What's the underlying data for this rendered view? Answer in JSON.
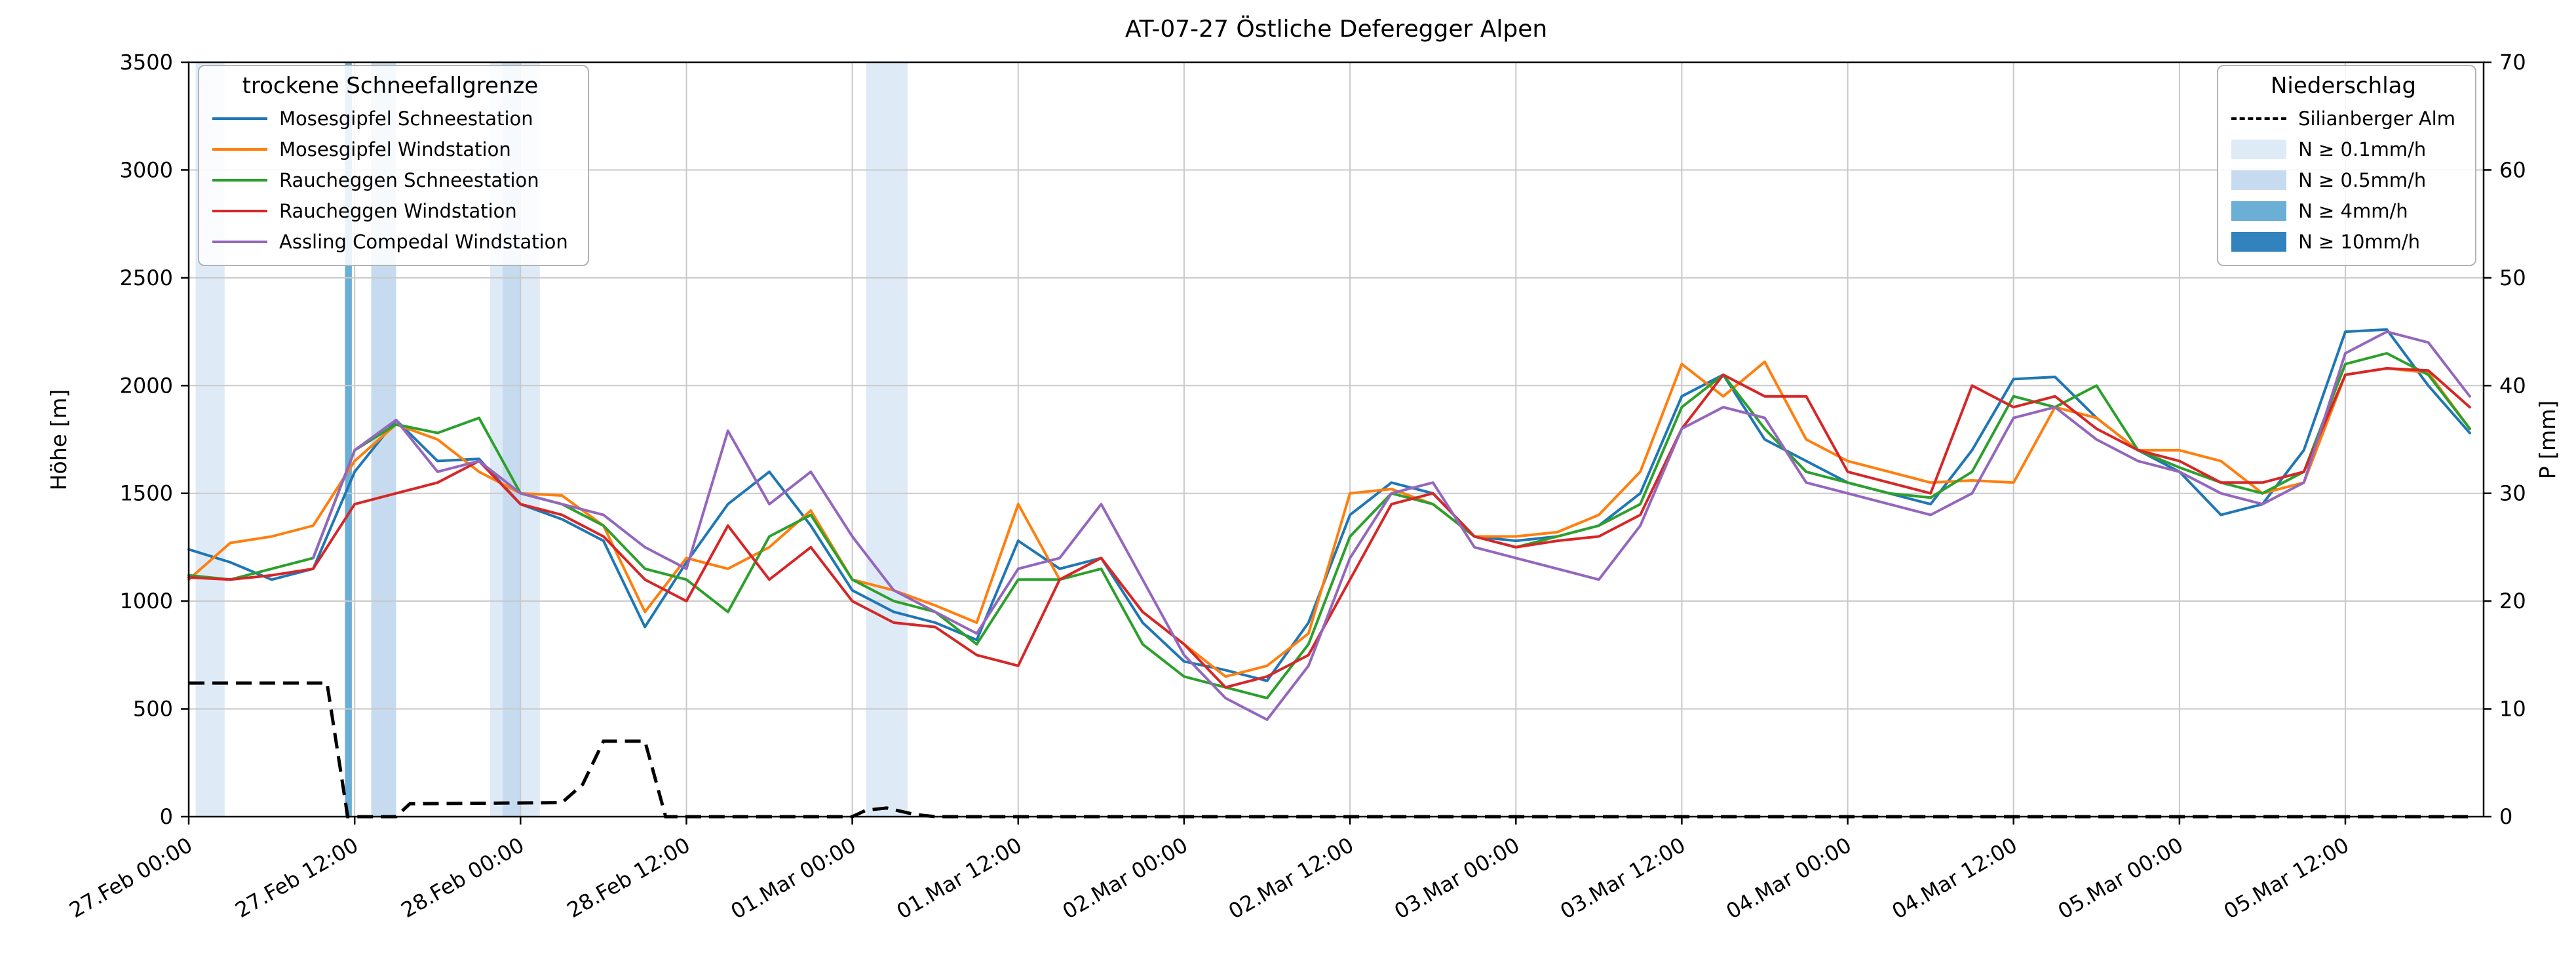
{
  "chart_data": {
    "type": "line",
    "title": "AT-07-27 Östliche Deferegger Alpen",
    "ylabel_left": "Höhe [m]",
    "ylabel_right": "P [mm]",
    "ylim_left": [
      0,
      3500
    ],
    "ylim_right": [
      0,
      70
    ],
    "y_ticks_left": [
      0,
      500,
      1000,
      1500,
      2000,
      2500,
      3000,
      3500
    ],
    "y_ticks_right": [
      0,
      10,
      20,
      30,
      40,
      50,
      60,
      70
    ],
    "x_unit": "hours since 27.Feb 00:00",
    "xlim": [
      0,
      166
    ],
    "grid": true,
    "x_ticks": [
      {
        "t": 0,
        "label": "27.Feb 00:00"
      },
      {
        "t": 12,
        "label": "27.Feb 12:00"
      },
      {
        "t": 24,
        "label": "28.Feb 00:00"
      },
      {
        "t": 36,
        "label": "28.Feb 12:00"
      },
      {
        "t": 48,
        "label": "01.Mar 00:00"
      },
      {
        "t": 60,
        "label": "01.Mar 12:00"
      },
      {
        "t": 72,
        "label": "02.Mar 00:00"
      },
      {
        "t": 84,
        "label": "02.Mar 12:00"
      },
      {
        "t": 96,
        "label": "03.Mar 00:00"
      },
      {
        "t": 108,
        "label": "03.Mar 12:00"
      },
      {
        "t": 120,
        "label": "04.Mar 00:00"
      },
      {
        "t": 132,
        "label": "04.Mar 12:00"
      },
      {
        "t": 144,
        "label": "05.Mar 00:00"
      },
      {
        "t": 156,
        "label": "05.Mar 12:00"
      }
    ],
    "x": [
      0,
      3,
      6,
      9,
      12,
      15,
      18,
      21,
      24,
      27,
      30,
      33,
      36,
      39,
      42,
      45,
      48,
      51,
      54,
      57,
      60,
      63,
      66,
      69,
      72,
      75,
      78,
      81,
      84,
      87,
      90,
      93,
      96,
      99,
      102,
      105,
      108,
      111,
      114,
      117,
      120,
      123,
      126,
      129,
      132,
      135,
      138,
      141,
      144,
      147,
      150,
      153,
      156,
      159,
      162,
      165
    ],
    "series": [
      {
        "name": "Mosesgipfel Schneestation",
        "color": "#1f77b4",
        "values": [
          1240,
          1180,
          1100,
          1150,
          1600,
          1840,
          1650,
          1660,
          1450,
          1380,
          1280,
          880,
          1180,
          1450,
          1600,
          1350,
          1050,
          950,
          900,
          820,
          1280,
          1150,
          1200,
          900,
          720,
          680,
          630,
          900,
          1400,
          1550,
          1500,
          1300,
          1280,
          1300,
          1350,
          1500,
          1950,
          2050,
          1750,
          1650,
          1550,
          1500,
          1450,
          1700,
          2030,
          2040,
          1850,
          1700,
          1600,
          1400,
          1450,
          1700,
          2250,
          2260,
          2000,
          1780
        ]
      },
      {
        "name": "Mosesgipfel Windstation",
        "color": "#ff7f0e",
        "values": [
          1100,
          1270,
          1300,
          1350,
          1650,
          1820,
          1750,
          1600,
          1500,
          1490,
          1350,
          950,
          1200,
          1150,
          1250,
          1420,
          1100,
          1050,
          980,
          900,
          1450,
          1100,
          1200,
          950,
          800,
          650,
          700,
          850,
          1500,
          1520,
          1450,
          1300,
          1300,
          1320,
          1400,
          1600,
          2100,
          1950,
          2110,
          1750,
          1650,
          1600,
          1550,
          1560,
          1550,
          1900,
          1850,
          1700,
          1700,
          1650,
          1500,
          1550,
          2050,
          2080,
          2060,
          1800
        ]
      },
      {
        "name": "Raucheggen Schneestation",
        "color": "#2ca02c",
        "values": [
          1120,
          1100,
          1150,
          1200,
          1700,
          1820,
          1780,
          1850,
          1500,
          1450,
          1350,
          1150,
          1100,
          950,
          1300,
          1400,
          1100,
          1000,
          950,
          800,
          1100,
          1100,
          1150,
          800,
          650,
          600,
          550,
          800,
          1300,
          1500,
          1450,
          1300,
          1250,
          1300,
          1350,
          1450,
          1900,
          2050,
          1800,
          1600,
          1550,
          1500,
          1480,
          1600,
          1950,
          1900,
          2000,
          1700,
          1620,
          1550,
          1500,
          1600,
          2100,
          2150,
          2050,
          1800
        ]
      },
      {
        "name": "Raucheggen Windstation",
        "color": "#d62728",
        "values": [
          1110,
          1100,
          1120,
          1150,
          1450,
          1500,
          1550,
          1650,
          1450,
          1400,
          1300,
          1100,
          1000,
          1350,
          1100,
          1250,
          1000,
          900,
          880,
          750,
          700,
          1100,
          1200,
          950,
          800,
          600,
          650,
          750,
          1100,
          1450,
          1500,
          1300,
          1250,
          1280,
          1300,
          1400,
          1800,
          2050,
          1950,
          1950,
          1600,
          1550,
          1500,
          2000,
          1900,
          1950,
          1800,
          1700,
          1650,
          1550,
          1550,
          1600,
          2050,
          2080,
          2070,
          1900
        ]
      },
      {
        "name": "Assling Compedal Windstation",
        "color": "#9467bd",
        "values": [
          null,
          null,
          null,
          1200,
          1700,
          1840,
          1600,
          1650,
          1500,
          1450,
          1400,
          1250,
          1150,
          1790,
          1450,
          1600,
          1300,
          1050,
          950,
          850,
          1150,
          1200,
          1450,
          1100,
          750,
          550,
          450,
          700,
          1200,
          1500,
          1550,
          1250,
          1200,
          1150,
          1100,
          1350,
          1800,
          1900,
          1850,
          1550,
          1500,
          1450,
          1400,
          1500,
          1850,
          1900,
          1750,
          1650,
          1600,
          1500,
          1450,
          1550,
          2150,
          2250,
          2200,
          1950
        ]
      }
    ],
    "precip_line": {
      "name": "Silianberger Alm",
      "color": "#000000",
      "style": "dashed",
      "axis": "right",
      "x": [
        0,
        10,
        11.5,
        15,
        16,
        27,
        28.5,
        30,
        33,
        34.5,
        48,
        49,
        50.5,
        52.5,
        54,
        165
      ],
      "values": [
        12.4,
        12.4,
        0,
        0,
        1.2,
        1.3,
        3,
        7,
        7,
        0,
        0,
        0.6,
        0.8,
        0.2,
        0,
        0
      ]
    },
    "precip_bands": [
      {
        "start": 0.5,
        "end": 2.6,
        "level": "N ≥ 0.1mm/h"
      },
      {
        "start": 11.3,
        "end": 11.8,
        "level": "N ≥ 4mm/h"
      },
      {
        "start": 13.2,
        "end": 15.0,
        "level": "N ≥ 0.5mm/h"
      },
      {
        "start": 21.8,
        "end": 25.4,
        "level": "N ≥ 0.1mm/h"
      },
      {
        "start": 22.7,
        "end": 24.0,
        "level": "N ≥ 0.5mm/h"
      },
      {
        "start": 49.0,
        "end": 52.0,
        "level": "N ≥ 0.1mm/h"
      }
    ]
  },
  "legend_left": {
    "title": "trockene Schneefallgrenze"
  },
  "legend_right": {
    "title": "Niederschlag",
    "levels": [
      {
        "label": "N ≥ 0.1mm/h",
        "color": "#deebf7"
      },
      {
        "label": "N ≥ 0.5mm/h",
        "color": "#c6dbef"
      },
      {
        "label": "N ≥ 4mm/h",
        "color": "#6baed6"
      },
      {
        "label": "N ≥ 10mm/h",
        "color": "#3182bd"
      }
    ]
  }
}
